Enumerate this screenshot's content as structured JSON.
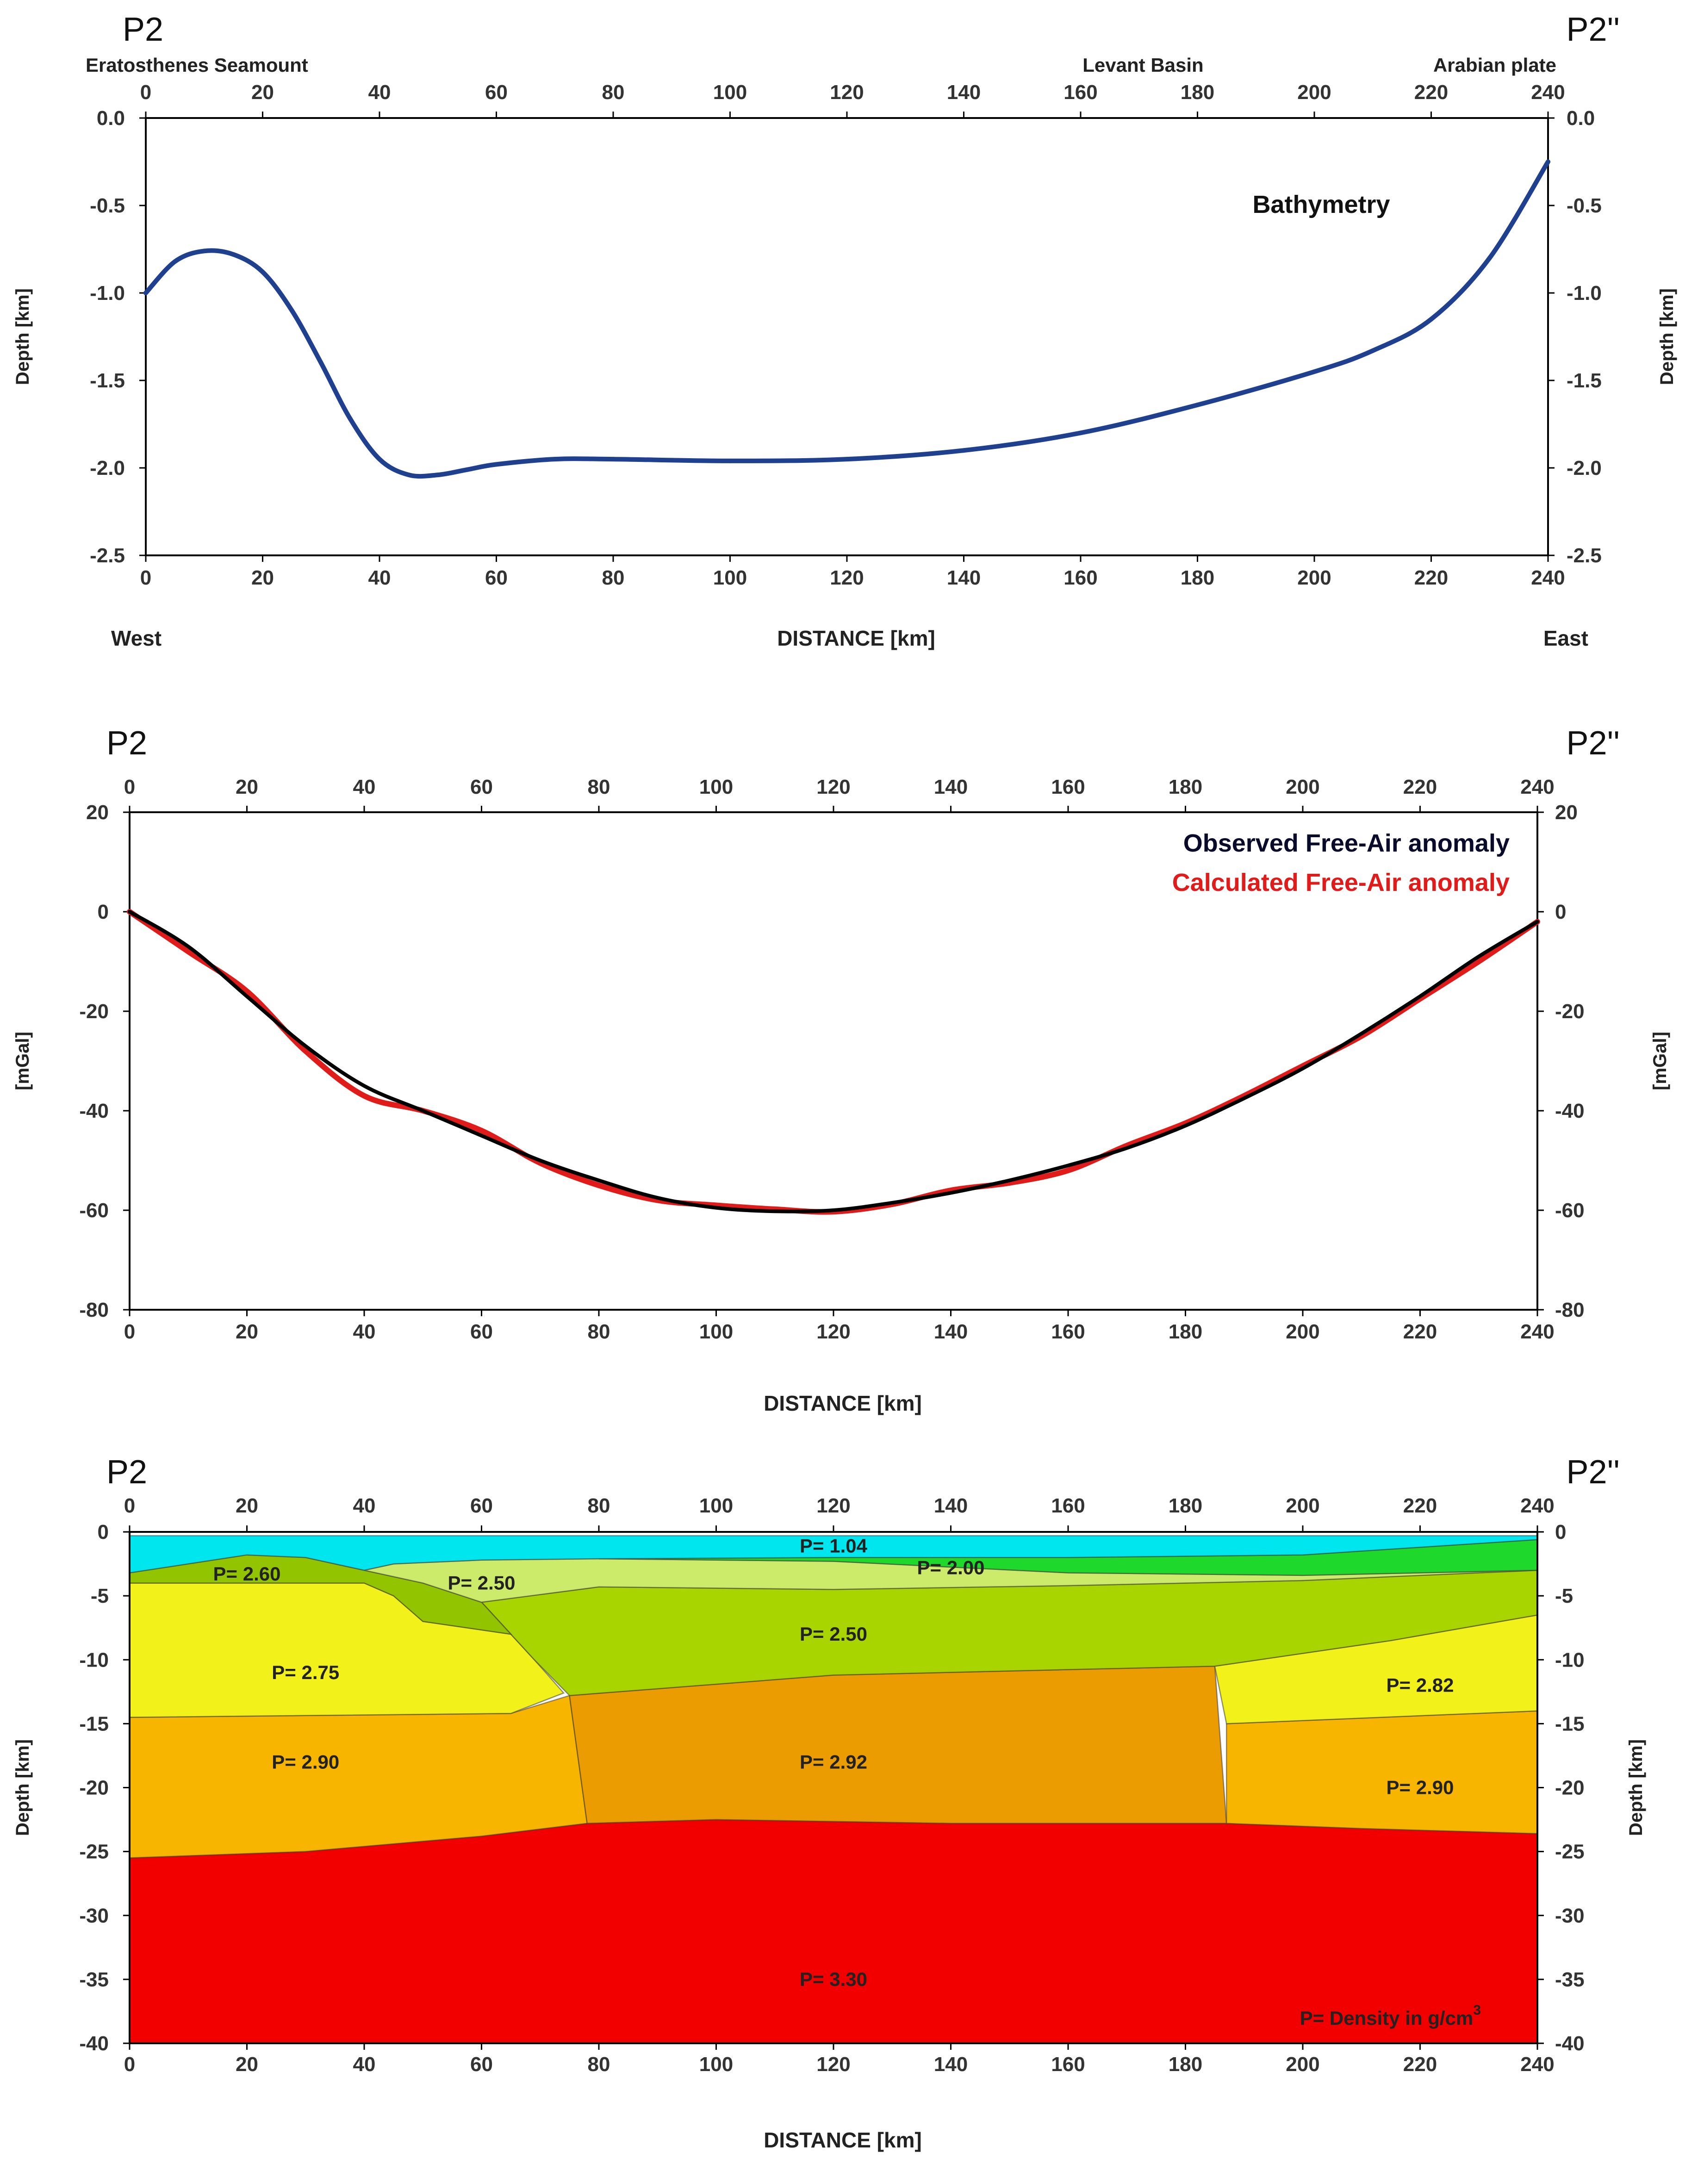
{
  "colors": {
    "bathymetry_line": "#1f3f8f",
    "observed_line": "#000000",
    "calculated_line": "#e11a1a",
    "legend_observed": "#0a0a2a",
    "legend_calculated": "#e11a1a"
  },
  "chart_data": [
    {
      "type": "line",
      "title": "Bathymetry",
      "profile_start": "P2",
      "profile_end": "P2''",
      "locations": [
        {
          "label": "Eratosthenes Seamount",
          "x": 20
        },
        {
          "label": "Levant Basin",
          "x": 170
        },
        {
          "label": "Arabian plate",
          "x": 230
        }
      ],
      "xlabel": "DISTANCE [km]",
      "xlabel_left": "West",
      "xlabel_right": "East",
      "ylabel": "Depth [km]",
      "xlim": [
        0,
        240
      ],
      "ylim": [
        -2.5,
        0.0
      ],
      "x_ticks": [
        0,
        20,
        40,
        60,
        80,
        100,
        120,
        140,
        160,
        180,
        200,
        220,
        240
      ],
      "y_ticks": [
        0.0,
        -0.5,
        -1.0,
        -1.5,
        -2.0,
        -2.5
      ],
      "y_tick_labels": [
        "0.0",
        "-0.5",
        "-1.0",
        "-1.5",
        "-2.0",
        "-2.5"
      ],
      "series": [
        {
          "name": "Bathymetry",
          "x": [
            0,
            5,
            10,
            15,
            20,
            25,
            30,
            35,
            40,
            45,
            50,
            55,
            60,
            70,
            80,
            100,
            120,
            140,
            160,
            180,
            200,
            210,
            220,
            230,
            240
          ],
          "y": [
            -1.0,
            -0.82,
            -0.76,
            -0.78,
            -0.88,
            -1.1,
            -1.4,
            -1.72,
            -1.95,
            -2.04,
            -2.04,
            -2.01,
            -1.98,
            -1.95,
            -1.95,
            -1.96,
            -1.95,
            -1.9,
            -1.8,
            -1.64,
            -1.45,
            -1.33,
            -1.15,
            -0.8,
            -0.25
          ]
        }
      ]
    },
    {
      "type": "line",
      "title": "",
      "profile_start": "P2",
      "profile_end": "P2''",
      "xlabel": "DISTANCE [km]",
      "ylabel": "[mGal]",
      "xlim": [
        0,
        240
      ],
      "ylim": [
        -80,
        20
      ],
      "x_ticks": [
        0,
        20,
        40,
        60,
        80,
        100,
        120,
        140,
        160,
        180,
        200,
        220,
        240
      ],
      "y_ticks": [
        20,
        0,
        -20,
        -40,
        -60,
        -80
      ],
      "y_tick_labels": [
        "20",
        "0",
        "-20",
        "-40",
        "-60",
        "-80"
      ],
      "legend": [
        "Observed Free-Air anomaly",
        "Calculated Free-Air anomaly"
      ],
      "series": [
        {
          "name": "Observed Free-Air anomaly",
          "x": [
            0,
            10,
            20,
            30,
            40,
            50,
            60,
            70,
            80,
            90,
            100,
            110,
            120,
            130,
            140,
            150,
            160,
            170,
            180,
            190,
            200,
            210,
            220,
            230,
            240
          ],
          "y": [
            0,
            -7,
            -17,
            -27,
            -35,
            -40,
            -45,
            -50,
            -54,
            -57.5,
            -59.5,
            -60.2,
            -60,
            -58.5,
            -56.5,
            -54,
            -51,
            -47.5,
            -43,
            -37.5,
            -31.5,
            -24.5,
            -17,
            -9,
            -2
          ]
        },
        {
          "name": "Calculated Free-Air anomaly",
          "x": [
            0,
            10,
            20,
            30,
            40,
            50,
            60,
            70,
            80,
            90,
            100,
            110,
            120,
            130,
            140,
            150,
            160,
            170,
            180,
            190,
            200,
            210,
            220,
            230,
            240
          ],
          "y": [
            0,
            -8,
            -16,
            -28,
            -37,
            -40,
            -44,
            -50.5,
            -55,
            -58,
            -59,
            -59.8,
            -60.3,
            -58.8,
            -56,
            -54.5,
            -52,
            -47,
            -42.5,
            -37,
            -31,
            -25,
            -17.5,
            -10,
            -2
          ]
        }
      ]
    },
    {
      "type": "area",
      "title": "",
      "profile_start": "P2",
      "profile_end": "P2''",
      "xlabel": "DISTANCE [km]",
      "ylabel": "Depth [km]",
      "xlim": [
        0,
        240
      ],
      "ylim": [
        -40,
        0
      ],
      "x_ticks": [
        0,
        20,
        40,
        60,
        80,
        100,
        120,
        140,
        160,
        180,
        200,
        220,
        240
      ],
      "y_ticks": [
        0,
        -5,
        -10,
        -15,
        -20,
        -25,
        -30,
        -35,
        -40
      ],
      "y_tick_labels": [
        "0",
        "-5",
        "-10",
        "-15",
        "-20",
        "-25",
        "-30",
        "-35",
        "-40"
      ],
      "legend_note": "P= Density in g/cm",
      "legend_note_sup": "3",
      "bodies": [
        {
          "name": "mantle",
          "label": "P= 3.30",
          "density": 3.3,
          "color": "#f20000",
          "label_x": 120,
          "label_y": -35,
          "polygon": [
            [
              0,
              -25.5
            ],
            [
              30,
              -25
            ],
            [
              60,
              -23.8
            ],
            [
              78,
              -22.8
            ],
            [
              100,
              -22.5
            ],
            [
              140,
              -22.8
            ],
            [
              187,
              -22.8
            ],
            [
              210,
              -23.2
            ],
            [
              240,
              -23.6
            ],
            [
              240,
              -40
            ],
            [
              0,
              -40
            ]
          ]
        },
        {
          "name": "lower-crust-west",
          "label": "P= 2.90",
          "density": 2.9,
          "color": "#f7b500",
          "label_x": 30,
          "label_y": -18,
          "polygon": [
            [
              0,
              -14.5
            ],
            [
              65,
              -14.2
            ],
            [
              75,
              -12.8
            ],
            [
              78,
              -22.8
            ],
            [
              60,
              -23.8
            ],
            [
              30,
              -25
            ],
            [
              0,
              -25.5
            ]
          ]
        },
        {
          "name": "oceanic-crust",
          "label": "P= 2.92",
          "density": 2.92,
          "color": "#eb9c00",
          "label_x": 120,
          "label_y": -18,
          "polygon": [
            [
              75,
              -12.8
            ],
            [
              120,
              -11.2
            ],
            [
              185,
              -10.5
            ],
            [
              187,
              -22.8
            ],
            [
              140,
              -22.8
            ],
            [
              100,
              -22.5
            ],
            [
              78,
              -22.8
            ]
          ]
        },
        {
          "name": "lower-crust-east",
          "label": "P= 2.90",
          "density": 2.9,
          "color": "#f7b500",
          "label_x": 220,
          "label_y": -20,
          "polygon": [
            [
              187,
              -15
            ],
            [
              240,
              -14
            ],
            [
              240,
              -23.6
            ],
            [
              210,
              -23.2
            ],
            [
              187,
              -22.8
            ]
          ]
        },
        {
          "name": "upper-crust-west",
          "label": "P= 2.75",
          "density": 2.75,
          "color": "#f2f21a",
          "label_x": 30,
          "label_y": -11,
          "polygon": [
            [
              0,
              -4
            ],
            [
              20,
              -4
            ],
            [
              40,
              -4
            ],
            [
              45,
              -5
            ],
            [
              50,
              -7
            ],
            [
              65,
              -8
            ],
            [
              69,
              -10
            ],
            [
              74,
              -12.6
            ],
            [
              65,
              -14.2
            ],
            [
              0,
              -14.5
            ]
          ]
        },
        {
          "name": "upper-crust-east",
          "label": "P= 2.82",
          "density": 2.82,
          "color": "#f2f21a",
          "label_x": 220,
          "label_y": -12,
          "polygon": [
            [
              185,
              -10.5
            ],
            [
              215,
              -8.5
            ],
            [
              240,
              -6.5
            ],
            [
              240,
              -14
            ],
            [
              187,
              -15
            ]
          ]
        },
        {
          "name": "sediments-deep",
          "label": "P= 2.50",
          "density": 2.5,
          "color": "#a8d400",
          "label_x": 120,
          "label_y": -8,
          "polygon": [
            [
              60,
              -5.5
            ],
            [
              80,
              -4.3
            ],
            [
              120,
              -4.5
            ],
            [
              160,
              -4.2
            ],
            [
              200,
              -3.8
            ],
            [
              240,
              -3
            ],
            [
              240,
              -6.5
            ],
            [
              215,
              -8.5
            ],
            [
              185,
              -10.5
            ],
            [
              120,
              -11.2
            ],
            [
              75,
              -12.8
            ],
            [
              69,
              -10
            ],
            [
              65,
              -8
            ]
          ]
        },
        {
          "name": "seamount-sediments",
          "label": "P= 2.60",
          "density": 2.6,
          "color": "#93c400",
          "label_x": 20,
          "label_y": -3.3,
          "polygon": [
            [
              0,
              -3.2
            ],
            [
              20,
              -1.8
            ],
            [
              30,
              -2
            ],
            [
              40,
              -3
            ],
            [
              50,
              -4
            ],
            [
              60,
              -5.5
            ],
            [
              65,
              -8
            ],
            [
              50,
              -7
            ],
            [
              45,
              -5
            ],
            [
              40,
              -4
            ],
            [
              20,
              -4
            ],
            [
              0,
              -4
            ]
          ]
        },
        {
          "name": "sediments-shallow",
          "label": "P= 2.50",
          "density": 2.5,
          "color": "#cdeb6a",
          "label_x": 60,
          "label_y": -4,
          "polygon": [
            [
              40,
              -3
            ],
            [
              45,
              -2.5
            ],
            [
              60,
              -2.2
            ],
            [
              80,
              -2.1
            ],
            [
              120,
              -2.3
            ],
            [
              160,
              -3.2
            ],
            [
              200,
              -3.4
            ],
            [
              240,
              -3
            ],
            [
              200,
              -3.8
            ],
            [
              160,
              -4.2
            ],
            [
              120,
              -4.5
            ],
            [
              80,
              -4.3
            ],
            [
              60,
              -5.5
            ],
            [
              50,
              -4
            ]
          ]
        },
        {
          "name": "evaporites",
          "label": "P= 2.00",
          "density": 2.0,
          "color": "#1ed82b",
          "label_x": 140,
          "label_y": -2.8,
          "polygon": [
            [
              80,
              -2.1
            ],
            [
              120,
              -2
            ],
            [
              160,
              -2
            ],
            [
              200,
              -1.8
            ],
            [
              240,
              -0.6
            ],
            [
              240,
              -3
            ],
            [
              200,
              -3.4
            ],
            [
              160,
              -3.2
            ],
            [
              120,
              -2.3
            ]
          ]
        },
        {
          "name": "water",
          "label": "P= 1.04",
          "density": 1.04,
          "color": "#00e6ef",
          "label_x": 120,
          "label_y": -1.1,
          "polygon": [
            [
              0,
              -0.3
            ],
            [
              240,
              -0.3
            ],
            [
              240,
              -0.6
            ],
            [
              200,
              -1.8
            ],
            [
              160,
              -2
            ],
            [
              120,
              -2
            ],
            [
              80,
              -2.1
            ],
            [
              60,
              -2.2
            ],
            [
              45,
              -2.5
            ],
            [
              40,
              -3
            ],
            [
              30,
              -2
            ],
            [
              20,
              -1.8
            ],
            [
              0,
              -3.2
            ]
          ]
        }
      ]
    }
  ]
}
